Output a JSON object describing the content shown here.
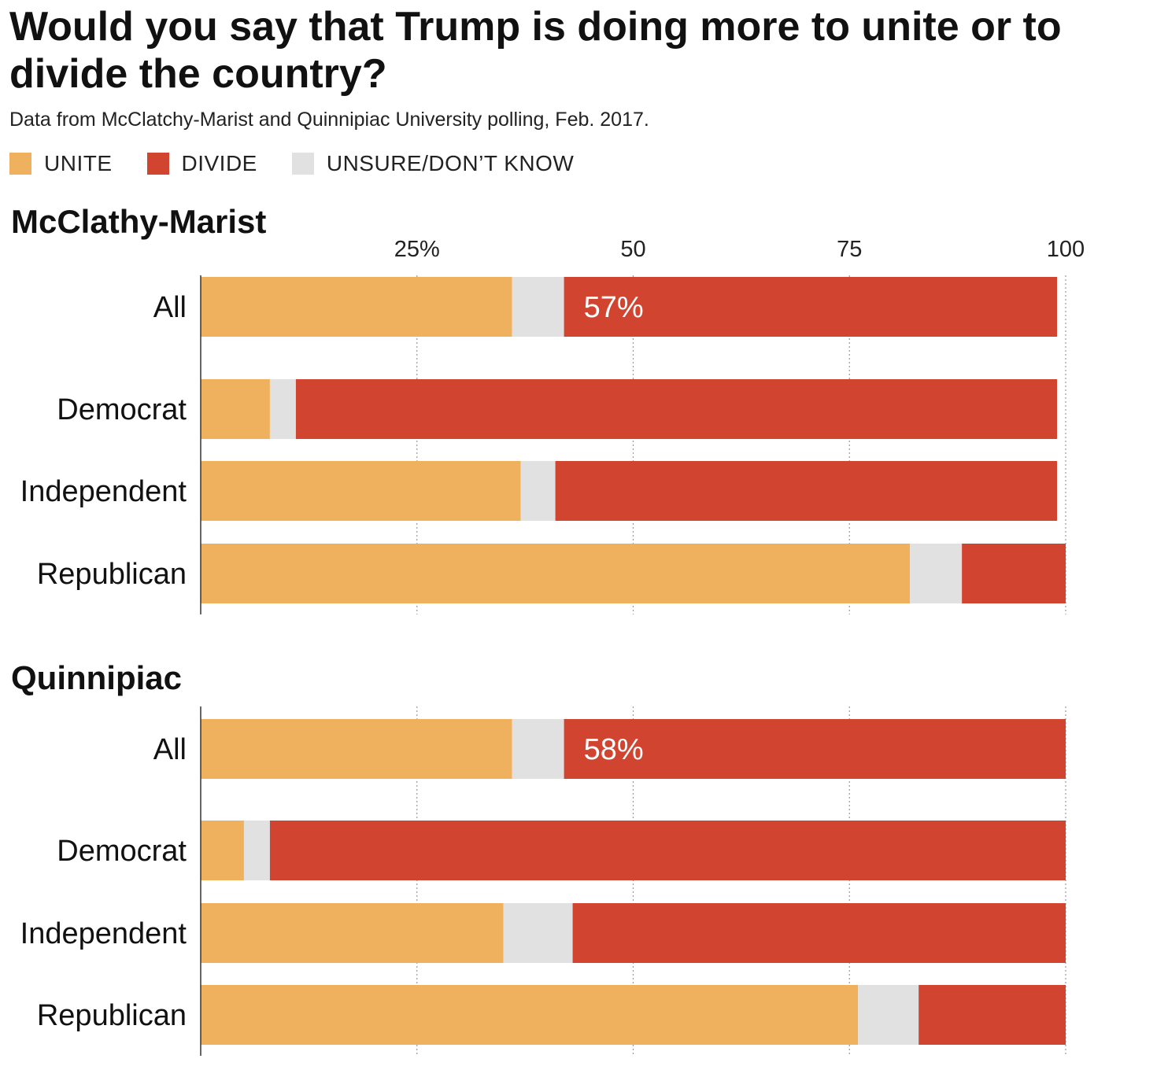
{
  "title": "Would you say that Trump is doing more to unite or to divide the country?",
  "subtitle": "Data from McClatchy-Marist and Quinnipiac University polling, Feb. 2017.",
  "legend": [
    {
      "label": "UNITE",
      "color": "#f0b15e"
    },
    {
      "label": "DIVIDE",
      "color": "#d14530"
    },
    {
      "label": "UNSURE/DON’T KNOW",
      "color": "#e1e1e1"
    }
  ],
  "chart_data": [
    {
      "type": "bar",
      "orientation": "horizontal",
      "stacked": true,
      "title": "McClathy-Marist",
      "categories": [
        "All",
        "Democrat",
        "Independent",
        "Republican"
      ],
      "xlim": [
        0,
        100
      ],
      "x_ticks": [
        "25%",
        "50",
        "75",
        "100"
      ],
      "grid": true,
      "series": [
        {
          "name": "UNITE",
          "values": [
            36,
            8,
            37,
            82
          ]
        },
        {
          "name": "UNSURE/DON’T KNOW",
          "values": [
            6,
            3,
            4,
            6
          ]
        },
        {
          "name": "DIVIDE",
          "values": [
            57,
            88,
            58,
            12
          ]
        }
      ],
      "annotations": [
        {
          "category": "All",
          "series": "DIVIDE",
          "text": "57%"
        }
      ]
    },
    {
      "type": "bar",
      "orientation": "horizontal",
      "stacked": true,
      "title": "Quinnipiac",
      "categories": [
        "All",
        "Democrat",
        "Independent",
        "Republican"
      ],
      "xlim": [
        0,
        100
      ],
      "grid": true,
      "series": [
        {
          "name": "UNITE",
          "values": [
            36,
            5,
            35,
            76
          ]
        },
        {
          "name": "UNSURE/DON’T KNOW",
          "values": [
            6,
            3,
            8,
            7
          ]
        },
        {
          "name": "DIVIDE",
          "values": [
            58,
            92,
            57,
            17
          ]
        }
      ],
      "annotations": [
        {
          "category": "All",
          "series": "DIVIDE",
          "text": "58%"
        }
      ]
    }
  ]
}
